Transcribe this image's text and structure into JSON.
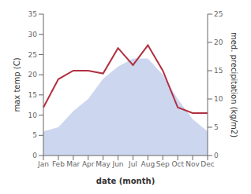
{
  "chart_data": {
    "type": "line",
    "categories": [
      "Jan",
      "Feb",
      "Mar",
      "Apr",
      "May",
      "Jun",
      "Jul",
      "Aug",
      "Sep",
      "Oct",
      "Nov",
      "Dec"
    ],
    "series": [
      {
        "type": "area",
        "color": "#b8c4e8",
        "values": [
          6,
          7,
          11,
          14,
          19,
          22,
          24,
          24,
          20,
          14,
          9,
          6
        ]
      },
      {
        "type": "line",
        "color": "#b03040",
        "axis": "y2",
        "values": [
          8.5,
          13.5,
          15.0,
          15.0,
          14.5,
          19.0,
          16.0,
          19.5,
          15.0,
          8.5,
          7.5,
          7.5
        ]
      }
    ],
    "xlabel": "date (month)",
    "ylabel": "max temp (C)",
    "y2label": "med. precipitation (kg/m2)",
    "ylim": [
      0,
      35
    ],
    "yticks": [
      0,
      5,
      10,
      15,
      20,
      25,
      30,
      35
    ],
    "y2lim": [
      0,
      25
    ],
    "y2ticks": [
      0,
      5,
      10,
      15,
      20,
      25
    ],
    "grid": false
  }
}
